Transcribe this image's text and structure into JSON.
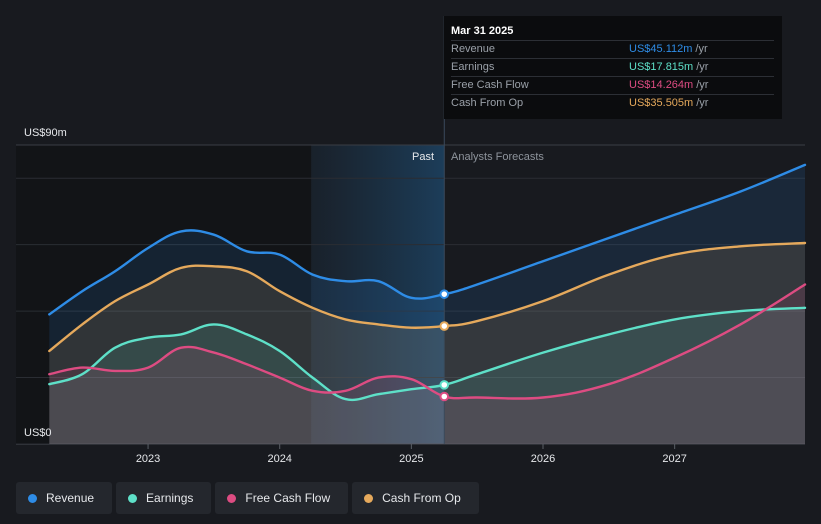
{
  "tooltip": {
    "date": "Mar 31 2025",
    "rows": [
      {
        "label": "Revenue",
        "value": "US$45.112m",
        "unit": "/yr",
        "color": "#2e8ce6"
      },
      {
        "label": "Earnings",
        "value": "US$17.815m",
        "unit": "/yr",
        "color": "#5ee0c8"
      },
      {
        "label": "Free Cash Flow",
        "value": "US$14.264m",
        "unit": "/yr",
        "color": "#dd4c82"
      },
      {
        "label": "Cash From Op",
        "value": "US$35.505m",
        "unit": "/yr",
        "color": "#e5a95c"
      }
    ]
  },
  "legend": [
    {
      "label": "Revenue",
      "color": "#2e8ce6"
    },
    {
      "label": "Earnings",
      "color": "#5ee0c8"
    },
    {
      "label": "Free Cash Flow",
      "color": "#dd4c82"
    },
    {
      "label": "Cash From Op",
      "color": "#e5a95c"
    }
  ],
  "chart_data": {
    "type": "area",
    "title": "",
    "y_max_label": "US$90m",
    "y_min_label": "US$0",
    "ylim": [
      0,
      90
    ],
    "xlim": [
      2022.24,
      2027.99
    ],
    "past_label": "Past",
    "forecast_label": "Analysts Forecasts",
    "past_band_start": 2024.24,
    "divider_x": 2025.25,
    "x_ticks": [
      {
        "x": 2023,
        "label": "2023"
      },
      {
        "x": 2024,
        "label": "2024"
      },
      {
        "x": 2025,
        "label": "2025"
      },
      {
        "x": 2026,
        "label": "2026"
      },
      {
        "x": 2027,
        "label": "2027"
      }
    ],
    "y_gridlines": [
      0,
      20,
      40,
      60,
      80,
      90
    ],
    "series": [
      {
        "name": "Revenue",
        "color": "#2e8ce6",
        "points": [
          [
            2022.25,
            39
          ],
          [
            2022.5,
            46
          ],
          [
            2022.75,
            52
          ],
          [
            2023.0,
            59
          ],
          [
            2023.25,
            64
          ],
          [
            2023.5,
            63
          ],
          [
            2023.75,
            58
          ],
          [
            2024.0,
            57
          ],
          [
            2024.25,
            51
          ],
          [
            2024.5,
            49
          ],
          [
            2024.75,
            49
          ],
          [
            2025.0,
            44
          ],
          [
            2025.25,
            45.1
          ],
          [
            2025.5,
            48
          ],
          [
            2026.0,
            55
          ],
          [
            2026.5,
            62
          ],
          [
            2027.0,
            69
          ],
          [
            2027.5,
            76
          ],
          [
            2027.99,
            84
          ]
        ]
      },
      {
        "name": "Cash From Op",
        "color": "#e5a95c",
        "points": [
          [
            2022.25,
            28
          ],
          [
            2022.5,
            36
          ],
          [
            2022.75,
            43
          ],
          [
            2023.0,
            48
          ],
          [
            2023.25,
            53
          ],
          [
            2023.5,
            53.5
          ],
          [
            2023.75,
            52
          ],
          [
            2024.0,
            46
          ],
          [
            2024.25,
            41
          ],
          [
            2024.5,
            37.5
          ],
          [
            2024.75,
            36
          ],
          [
            2025.0,
            35
          ],
          [
            2025.25,
            35.5
          ],
          [
            2025.5,
            37
          ],
          [
            2026.0,
            43
          ],
          [
            2026.5,
            51
          ],
          [
            2027.0,
            57
          ],
          [
            2027.5,
            59.5
          ],
          [
            2027.99,
            60.5
          ]
        ]
      },
      {
        "name": "Earnings",
        "color": "#5ee0c8",
        "points": [
          [
            2022.25,
            18
          ],
          [
            2022.5,
            21
          ],
          [
            2022.75,
            29
          ],
          [
            2023.0,
            32
          ],
          [
            2023.25,
            33
          ],
          [
            2023.5,
            36
          ],
          [
            2023.75,
            33
          ],
          [
            2024.0,
            28
          ],
          [
            2024.25,
            20
          ],
          [
            2024.5,
            13.5
          ],
          [
            2024.75,
            15
          ],
          [
            2025.0,
            16.5
          ],
          [
            2025.25,
            17.8
          ],
          [
            2025.5,
            21
          ],
          [
            2026.0,
            27.5
          ],
          [
            2026.5,
            33
          ],
          [
            2027.0,
            37.5
          ],
          [
            2027.5,
            40
          ],
          [
            2027.99,
            41
          ]
        ]
      },
      {
        "name": "Free Cash Flow",
        "color": "#dd4c82",
        "points": [
          [
            2022.25,
            21
          ],
          [
            2022.5,
            23
          ],
          [
            2022.75,
            22
          ],
          [
            2023.0,
            23
          ],
          [
            2023.25,
            29
          ],
          [
            2023.5,
            27.5
          ],
          [
            2023.75,
            24
          ],
          [
            2024.0,
            20
          ],
          [
            2024.25,
            16
          ],
          [
            2024.5,
            16
          ],
          [
            2024.75,
            20
          ],
          [
            2025.0,
            19.5
          ],
          [
            2025.25,
            14.3
          ],
          [
            2025.5,
            14
          ],
          [
            2026.0,
            14
          ],
          [
            2026.5,
            18
          ],
          [
            2027.0,
            26
          ],
          [
            2027.5,
            36
          ],
          [
            2027.99,
            48
          ]
        ]
      }
    ]
  }
}
